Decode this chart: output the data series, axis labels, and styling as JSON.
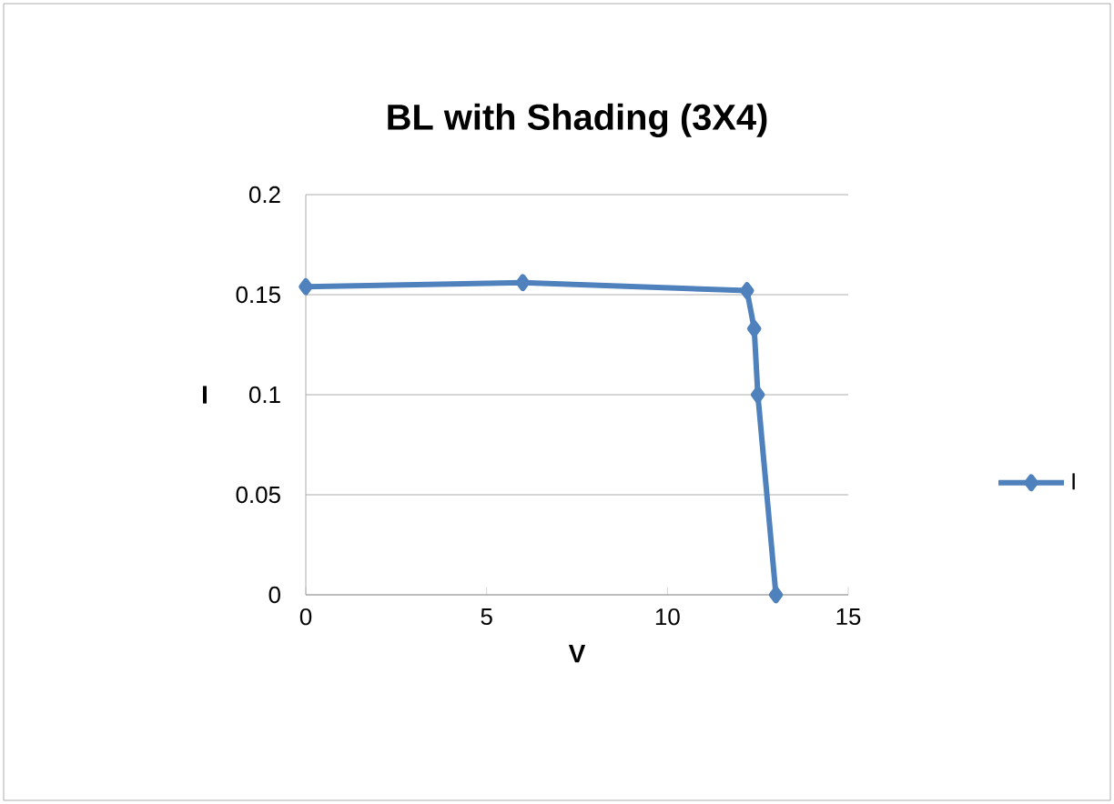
{
  "chart_data": {
    "type": "line",
    "title": "BL with Shading (3X4)",
    "xlabel": "V",
    "ylabel": "I",
    "x": [
      0,
      6,
      12.2,
      12.4,
      12.5,
      13
    ],
    "series": [
      {
        "name": "I",
        "color": "#4f81bd",
        "values": [
          0.154,
          0.156,
          0.152,
          0.133,
          0.1,
          0
        ]
      }
    ],
    "xlim": [
      0,
      15
    ],
    "xticks": [
      0,
      5,
      10,
      15
    ],
    "ylim": [
      0,
      0.2
    ],
    "yticks": [
      0,
      0.05,
      0.1,
      0.15,
      0.2
    ],
    "grid": "y",
    "legend": "right",
    "marker": "diamond",
    "line_style": "solid"
  }
}
